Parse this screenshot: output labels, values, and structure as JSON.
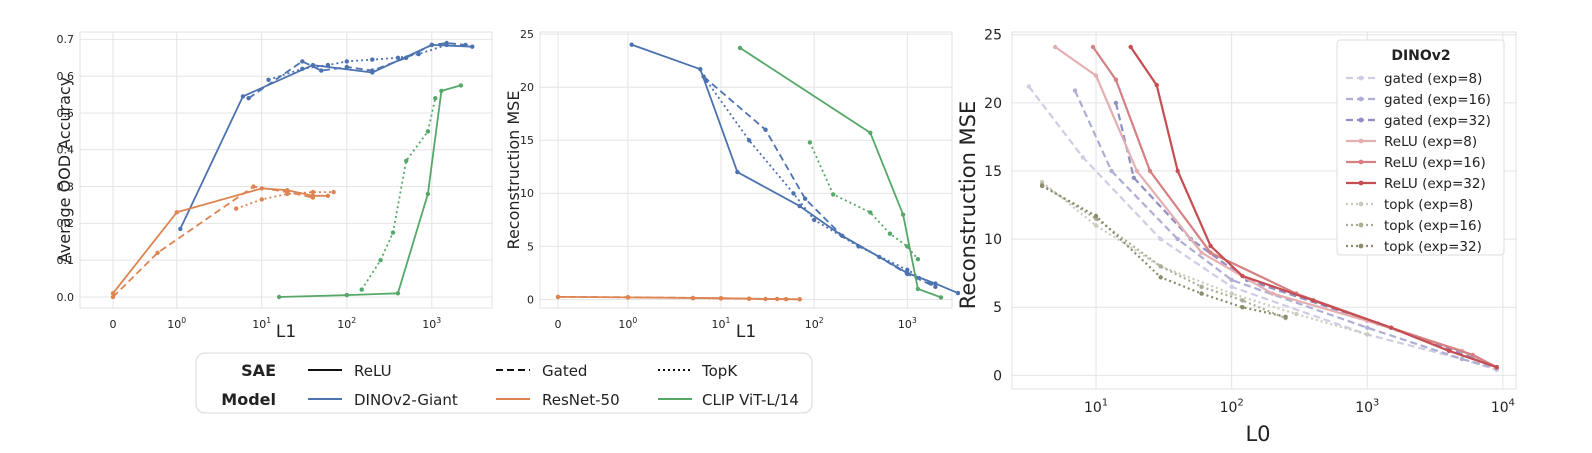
{
  "colors": {
    "dino": "#4c72b0",
    "resnet": "#dd8452",
    "clip": "#55a868",
    "gated": "#8f8fc4",
    "relu": "#c44e52",
    "topk": "#8c8c6c"
  },
  "chart_data": [
    {
      "type": "line",
      "xscale": "symlog",
      "xlabel": "L1",
      "ylabel": "Average OOD Accuracy",
      "xticks": [
        {
          "v": 0,
          "label": "0"
        },
        {
          "v": 1,
          "label": "10",
          "exp": "0"
        },
        {
          "v": 10,
          "label": "10",
          "exp": "1"
        },
        {
          "v": 100,
          "label": "10",
          "exp": "2"
        },
        {
          "v": 1000,
          "label": "10",
          "exp": "3"
        }
      ],
      "yticks": [
        "0.0",
        "0.1",
        "0.2",
        "0.3",
        "0.4",
        "0.5",
        "0.6",
        "0.7"
      ],
      "ylim": [
        -0.03,
        0.72
      ],
      "series": [
        {
          "model": "dino",
          "style": "solid",
          "x": [
            1.1,
            6,
            40,
            200,
            1000,
            3000
          ],
          "y": [
            0.185,
            0.545,
            0.63,
            0.61,
            0.685,
            0.68
          ]
        },
        {
          "model": "dino",
          "style": "dashed",
          "x": [
            7,
            30,
            50,
            100,
            200,
            500,
            1000,
            1500,
            2500
          ],
          "y": [
            0.54,
            0.64,
            0.615,
            0.625,
            0.615,
            0.65,
            0.685,
            0.69,
            0.685
          ]
        },
        {
          "model": "dino",
          "style": "dotted",
          "x": [
            12,
            30,
            60,
            100,
            200,
            400,
            700,
            1500
          ],
          "y": [
            0.59,
            0.62,
            0.63,
            0.64,
            0.645,
            0.65,
            0.66,
            0.685
          ]
        },
        {
          "model": "resnet",
          "style": "solid",
          "x": [
            0,
            1,
            10,
            20,
            40,
            60
          ],
          "y": [
            0.01,
            0.23,
            0.295,
            0.29,
            0.275,
            0.275
          ]
        },
        {
          "model": "resnet",
          "style": "dashed",
          "x": [
            0,
            0.7,
            8,
            20,
            40
          ],
          "y": [
            0.0,
            0.12,
            0.3,
            0.285,
            0.27
          ]
        },
        {
          "model": "resnet",
          "style": "dotted",
          "x": [
            5,
            10,
            20,
            40,
            70
          ],
          "y": [
            0.24,
            0.265,
            0.28,
            0.285,
            0.285
          ]
        },
        {
          "model": "clip",
          "style": "solid",
          "x": [
            16,
            100,
            400,
            900,
            1300,
            2200
          ],
          "y": [
            0.0,
            0.005,
            0.01,
            0.28,
            0.56,
            0.575
          ]
        },
        {
          "model": "clip",
          "style": "dotted",
          "x": [
            150,
            250,
            350,
            500,
            900,
            1100
          ],
          "y": [
            0.02,
            0.1,
            0.175,
            0.37,
            0.45,
            0.54
          ]
        }
      ]
    },
    {
      "type": "line",
      "xscale": "symlog",
      "xlabel": "L1",
      "ylabel": "Reconstruction MSE",
      "xticks": [
        {
          "v": 0,
          "label": "0"
        },
        {
          "v": 1,
          "label": "10",
          "exp": "0"
        },
        {
          "v": 10,
          "label": "10",
          "exp": "1"
        },
        {
          "v": 100,
          "label": "10",
          "exp": "2"
        },
        {
          "v": 1000,
          "label": "10",
          "exp": "3"
        }
      ],
      "yticks": [
        "0",
        "5",
        "10",
        "15",
        "20",
        "25"
      ],
      "ylim": [
        -0.8,
        25.2
      ],
      "series": [
        {
          "model": "dino",
          "style": "solid",
          "x": [
            1.1,
            6,
            15,
            70,
            200,
            1000,
            2000,
            3500
          ],
          "y": [
            24,
            21.7,
            12,
            8.8,
            6,
            2.5,
            1.5,
            0.6
          ]
        },
        {
          "model": "dino",
          "style": "dashed",
          "x": [
            6.5,
            30,
            80,
            200,
            500,
            1000,
            2000
          ],
          "y": [
            21,
            16,
            9.5,
            6,
            4,
            2.4,
            1.2
          ]
        },
        {
          "model": "dino",
          "style": "dotted",
          "x": [
            7,
            20,
            60,
            100,
            300,
            1000,
            1800
          ],
          "y": [
            20.6,
            15,
            10,
            7.5,
            5,
            2.8,
            1.5
          ]
        },
        {
          "model": "resnet",
          "style": "solid",
          "x": [
            0,
            1,
            10,
            30,
            70
          ],
          "y": [
            0.25,
            0.2,
            0.12,
            0.05,
            0.02
          ]
        },
        {
          "model": "resnet",
          "style": "dashed",
          "x": [
            0,
            1,
            5,
            20,
            50
          ],
          "y": [
            0.25,
            0.22,
            0.15,
            0.08,
            0.03
          ]
        },
        {
          "model": "resnet",
          "style": "dotted",
          "x": [
            5,
            10,
            20,
            40,
            70
          ],
          "y": [
            0.12,
            0.1,
            0.08,
            0.05,
            0.02
          ]
        },
        {
          "model": "clip",
          "style": "solid",
          "x": [
            16,
            400,
            900,
            1300,
            2300
          ],
          "y": [
            23.7,
            15.7,
            8,
            1,
            0.2
          ]
        },
        {
          "model": "clip",
          "style": "dotted",
          "x": [
            90,
            160,
            400,
            650,
            1000,
            1300
          ],
          "y": [
            14.8,
            9.9,
            8.2,
            6.2,
            5,
            3.8
          ]
        }
      ]
    },
    {
      "type": "line",
      "xscale": "log",
      "xlabel": "L0",
      "ylabel": "Reconstruction MSE",
      "xticks": [
        {
          "v": 10,
          "label": "10",
          "exp": "1"
        },
        {
          "v": 100,
          "label": "10",
          "exp": "2"
        },
        {
          "v": 1000,
          "label": "10",
          "exp": "3"
        },
        {
          "v": 10000,
          "label": "10",
          "exp": "4"
        }
      ],
      "yticks": [
        "0",
        "5",
        "10",
        "15",
        "20",
        "25"
      ],
      "xlim": [
        2.4,
        12500
      ],
      "ylim": [
        -1.0,
        25.2
      ],
      "legend": {
        "title": "DINOv2",
        "position": "top-right",
        "entries": [
          "gated (exp=8)",
          "gated (exp=16)",
          "gated (exp=32)",
          "ReLU (exp=8)",
          "ReLU (exp=16)",
          "ReLU (exp=32)",
          "topk (exp=8)",
          "topk (exp=16)",
          "topk (exp=32)"
        ]
      },
      "series": [
        {
          "name": "gated (exp=8)",
          "fam": "gated",
          "shade": 0.45,
          "style": "dashed",
          "x": [
            3.2,
            8,
            30,
            100,
            1000,
            5000,
            9000
          ],
          "y": [
            21.2,
            16,
            10,
            6.5,
            3,
            1.2,
            0.4
          ]
        },
        {
          "name": "gated (exp=16)",
          "fam": "gated",
          "shade": 0.72,
          "style": "dashed",
          "x": [
            7,
            13,
            40,
            100,
            1000,
            5000,
            9000
          ],
          "y": [
            20.9,
            15,
            10,
            7,
            3.5,
            1.2,
            0.5
          ]
        },
        {
          "name": "gated (exp=32)",
          "fam": "gated",
          "shade": 1.0,
          "style": "dashed",
          "x": [
            14,
            19,
            50,
            130,
            1200,
            6000,
            9000
          ],
          "y": [
            20,
            14.5,
            10,
            7,
            3.8,
            1.3,
            0.6
          ]
        },
        {
          "name": "ReLU (exp=8)",
          "fam": "relu",
          "shade": 0.45,
          "style": "solid",
          "x": [
            5,
            10,
            20,
            60,
            200,
            1000,
            5000,
            9000
          ],
          "y": [
            24.1,
            22,
            15,
            9,
            6,
            4,
            1.8,
            0.6
          ]
        },
        {
          "name": "ReLU (exp=16)",
          "fam": "relu",
          "shade": 0.72,
          "style": "solid",
          "x": [
            9.5,
            14,
            25,
            70,
            300,
            1500,
            6000,
            9000
          ],
          "y": [
            24.1,
            21.7,
            15,
            9,
            6,
            3.5,
            1.5,
            0.6
          ]
        },
        {
          "name": "ReLU (exp=32)",
          "fam": "relu",
          "shade": 1.0,
          "style": "solid",
          "x": [
            18,
            28,
            40,
            70,
            120,
            400,
            1500,
            4000,
            9000
          ],
          "y": [
            24.1,
            21.3,
            15,
            9.5,
            7.3,
            5.5,
            3.5,
            1.8,
            0.6
          ]
        },
        {
          "name": "topk (exp=8)",
          "fam": "topk",
          "shade": 0.45,
          "style": "dotted",
          "x": [
            4,
            10,
            30,
            100,
            300,
            1000
          ],
          "y": [
            14.2,
            11,
            8,
            6,
            4.5,
            3
          ]
        },
        {
          "name": "topk (exp=16)",
          "fam": "topk",
          "shade": 0.72,
          "style": "dotted",
          "x": [
            4,
            10,
            30,
            60,
            120,
            250
          ],
          "y": [
            14,
            11.5,
            8,
            6.5,
            5.5,
            4.2
          ]
        },
        {
          "name": "topk (exp=32)",
          "fam": "topk",
          "shade": 1.0,
          "style": "dotted",
          "x": [
            4,
            10,
            30,
            60,
            120,
            250
          ],
          "y": [
            13.9,
            11.7,
            7.2,
            6,
            5,
            4.3
          ]
        }
      ]
    }
  ],
  "legend_box": {
    "sae_header": "SAE",
    "model_header": "Model",
    "sae_items": [
      "ReLU",
      "Gated",
      "TopK"
    ],
    "model_items": [
      "DINOv2-Giant",
      "ResNet-50",
      "CLIP ViT-L/14"
    ]
  }
}
